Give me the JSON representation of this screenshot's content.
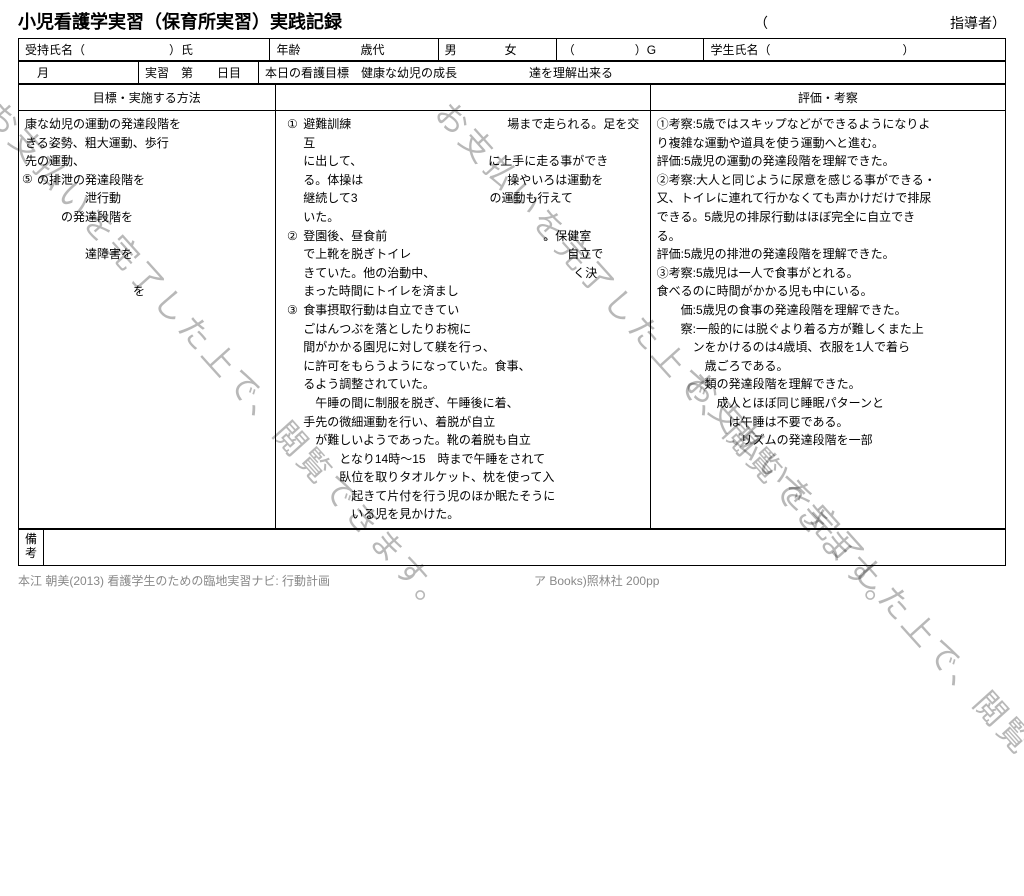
{
  "title": {
    "main": "小児看護学実習",
    "sub": "（保育所実習）",
    "type": "実践記録",
    "instructor_open": "（",
    "instructor_label": "指導者）"
  },
  "header": {
    "row1": {
      "ukemochi": "受持氏名（　　　　　　　）氏",
      "age": "年齢　　　　　歳代",
      "sex": "男　　　　女",
      "group": "（　　　　　）G",
      "student": "学生氏名（　　　　　　　　　　　）"
    },
    "row2": {
      "month": "　月",
      "day": "実習　第　　日目",
      "goal_label": "本日の看護目標",
      "goal_text": "健康な幼児の成長　　　　　　達を理解出来る"
    }
  },
  "columns": {
    "goal": "目標・実施する方法",
    "eval": "評価・考察"
  },
  "left_num": "⑤",
  "goal_lines": [
    "康な幼児の運動の発達段階を",
    "きる姿勢、粗大運動、歩行",
    "先の運動、",
    "　の排泄の発達段階を",
    "　　　　　泄行動",
    "　　　の発達段階を",
    "",
    "　　　　　達障害を",
    "",
    "　　　　　　　　　を"
  ],
  "impl_items": [
    {
      "num": "①",
      "lines": [
        "避難訓練　　　　　　　　　　　　　場まで走られる。足を交互",
        "に出して、　　　　　　　　　　　に上手に走る事ができ",
        "る。体操は　　　　　　　　　　　　操やいろは運動を",
        "継続して3　　　　　　　　　　　の運動も行えて",
        "いた。"
      ]
    },
    {
      "num": "②",
      "lines": [
        "登園後、昼食前　　　　　　　　　　　　　。保健室",
        "で上靴を脱ぎトイレ　　　　　　　　　　　　　自立で",
        "きていた。他の治動中、　　　　　　　　　　　　く決",
        "まった時間にトイレを済まし"
      ]
    },
    {
      "num": "③",
      "lines": [
        "食事摂取行動は自立できてい",
        "ごはんつぶを落としたりお椀に　　　",
        "間がかかる園児に対して躾を行っ、",
        "に許可をもらうようになっていた。食事、",
        "るよう調整されていた。",
        "　午睡の間に制服を脱ぎ、午睡後に着、",
        "手先の微細運動を行い、着脱が自立",
        "　が難しいようであった。靴の着脱も自立",
        "　　　となり14時～15　時まで午睡をされて",
        "　　　臥位を取りタオルケット、枕を使って入",
        "　　　　起きて片付を行う児のほか眠たそうに",
        "　　　　いる児を見かけた。"
      ]
    }
  ],
  "eval_lines": [
    "①考察:5歳ではスキップなどができるようになりよ",
    "り複雑な運動や道具を使う運動へと進む。",
    "評価:5歳児の運動の発達段階を理解できた。",
    "②考察:大人と同じように尿意を感じる事ができる・",
    "又、トイレに連れて行かなくても声かけだけで排尿",
    "できる。5歳児の排尿行動はほぼ完全に自立でき",
    "る。",
    "評価:5歳児の排泄の発達段階を理解できた。",
    "③考察:5歳児は一人で食事がとれる。",
    "食べるのに時間がかかる児も中にいる。",
    "　　価:5歳児の食事の発達段階を理解できた。",
    "　　察:一般的には脱ぐより着る方が難しくまた上",
    "　　　ンをかけるのは4歳頃、衣服を1人で着ら",
    "　　　　歳ごろである。",
    "　　　　類の発達段階を理解できた。",
    "　　　　　成人とほぼ同じ睡眠パターンと",
    "　　　　　　は午睡は不要である。",
    "　　　　　　　リズムの発達段階を一部"
  ],
  "notes": {
    "label1": "備",
    "label2": "考",
    "content": ""
  },
  "footer": "本江 朝美(2013) 看護学生のための臨地実習ナビ: 行動計画　　　　　　　　　　　　　　　　　ア Books)照林社  200pp",
  "watermark_text": "お支払いを完了した上で、閲覧できます。"
}
